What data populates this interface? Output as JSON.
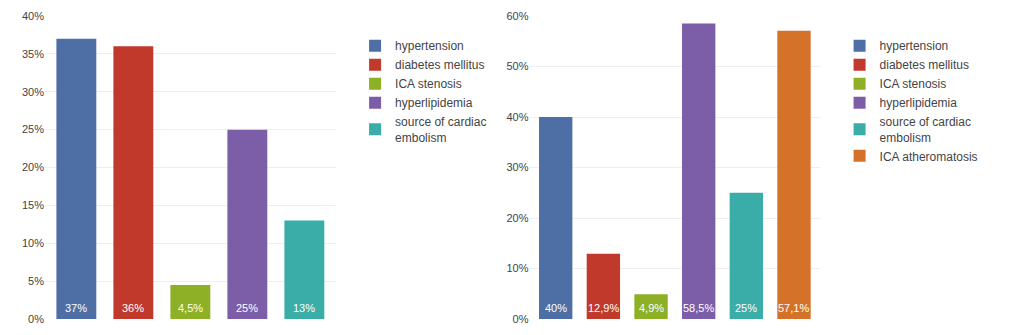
{
  "chart_data": [
    {
      "type": "bar",
      "categories": [
        "hypertension",
        "diabetes mellitus",
        "ICA stenosis",
        "hyperlipidemia",
        "source of cardiac\nembolism"
      ],
      "values": [
        37,
        36,
        4.5,
        25,
        13
      ],
      "value_labels": [
        "37%",
        "36%",
        "4,5%",
        "25%",
        "13%"
      ],
      "colors": [
        "#4d6fa5",
        "#c0392b",
        "#8db026",
        "#7b5ea7",
        "#3aada8"
      ],
      "ylim": [
        0,
        40
      ],
      "yticks": [
        {
          "value": 0,
          "label": "0%"
        },
        {
          "value": 5,
          "label": "5%"
        },
        {
          "value": 10,
          "label": "10%"
        },
        {
          "value": 15,
          "label": "15%"
        },
        {
          "value": 20,
          "label": "20%"
        },
        {
          "value": 25,
          "label": "25%"
        },
        {
          "value": 30,
          "label": "30%"
        },
        {
          "value": 35,
          "label": "35%"
        },
        {
          "value": 40,
          "label": "40%"
        }
      ],
      "grid": true,
      "legend": "right",
      "data_labels": true,
      "tick_labels": "y"
    },
    {
      "type": "bar",
      "categories": [
        "hypertension",
        "diabetes mellitus",
        "ICA stenosis",
        "hyperlipidemia",
        "source of cardiac\nembolism",
        "ICA atheromatosis"
      ],
      "values": [
        40,
        12.9,
        4.9,
        58.5,
        25,
        57.1
      ],
      "value_labels": [
        "40%",
        "12,9%",
        "4,9%",
        "58,5%",
        "25%",
        "57,1%"
      ],
      "colors": [
        "#4d6fa5",
        "#c0392b",
        "#8db026",
        "#7b5ea7",
        "#3aada8",
        "#d4722a"
      ],
      "ylim": [
        0,
        60
      ],
      "yticks": [
        {
          "value": 0,
          "label": "0%"
        },
        {
          "value": 10,
          "label": "10%"
        },
        {
          "value": 20,
          "label": "20%"
        },
        {
          "value": 30,
          "label": "30%"
        },
        {
          "value": 40,
          "label": "40%"
        },
        {
          "value": 50,
          "label": "50%"
        },
        {
          "value": 60,
          "label": "60%"
        }
      ],
      "grid": true,
      "legend": "right",
      "data_labels": true,
      "tick_labels": "y"
    }
  ]
}
